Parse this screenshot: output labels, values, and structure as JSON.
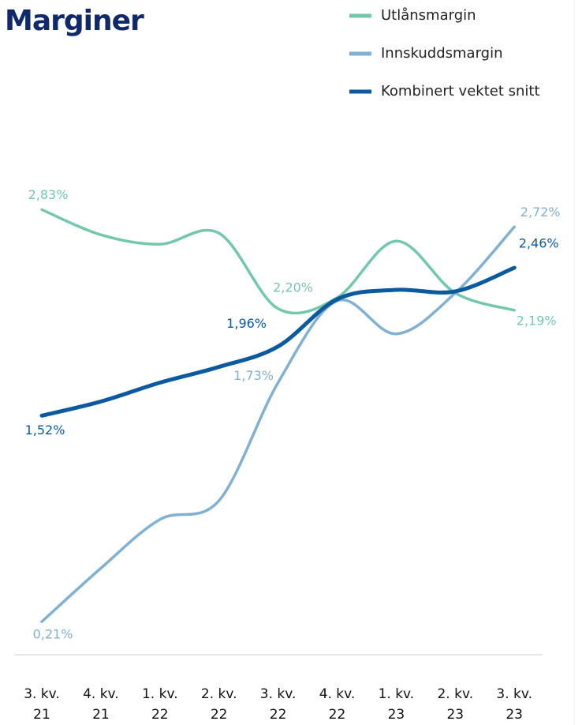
{
  "chart_data": {
    "type": "line",
    "title": "Marginer",
    "categories": [
      "3. kv. 21",
      "4. kv. 21",
      "1. kv. 22",
      "2. kv. 22",
      "3. kv. 22",
      "4. kv. 22",
      "1. kv. 23",
      "2. kv. 23",
      "3. kv. 23"
    ],
    "ylim": [
      0,
      3.5
    ],
    "series": [
      {
        "name": "Utlånsmargin",
        "color": "#72c9aa",
        "values": [
          2.83,
          2.67,
          2.61,
          2.68,
          2.2,
          2.27,
          2.63,
          2.3,
          2.19
        ],
        "value_labels": [
          "2,83%",
          null,
          null,
          null,
          "2,20%",
          null,
          null,
          null,
          "2,19%"
        ]
      },
      {
        "name": "Innskuddsmargin",
        "color": "#80b1d3",
        "values": [
          0.21,
          0.55,
          0.86,
          0.98,
          1.73,
          2.25,
          2.04,
          2.3,
          2.72
        ],
        "value_labels": [
          "0,21%",
          null,
          null,
          null,
          "1,73%",
          null,
          null,
          null,
          "2,72%"
        ]
      },
      {
        "name": "Kombinert vektet snitt",
        "color": "#0b5aa0",
        "values": [
          1.52,
          1.61,
          1.73,
          1.83,
          1.96,
          2.26,
          2.32,
          2.31,
          2.46
        ],
        "value_labels": [
          "1,52%",
          null,
          null,
          null,
          "1,96%",
          null,
          null,
          null,
          "2,46%"
        ]
      }
    ]
  }
}
